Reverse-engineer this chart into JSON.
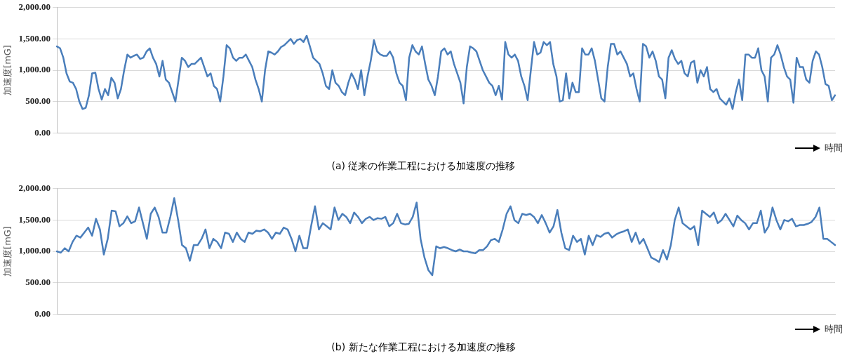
{
  "chart_data": [
    {
      "type": "line",
      "title": "(a)  従来の作業工程における加速度の推移",
      "xlabel": "時間",
      "ylabel": "加速度[mG]",
      "ylim": [
        0,
        2000
      ],
      "yticks": [
        {
          "value": 0,
          "label": "0.00"
        },
        {
          "value": 500,
          "label": "500.00"
        },
        {
          "value": 1000,
          "label": "1,000.00"
        },
        {
          "value": 1500,
          "label": "1,500.00"
        },
        {
          "value": 2000,
          "label": "2,000.00"
        }
      ],
      "grid": "y",
      "marker": "none",
      "line_style": "solid",
      "categories": [
        null,
        null,
        null,
        null,
        null,
        null,
        null,
        null,
        null,
        null,
        null,
        null,
        null,
        null,
        null,
        null,
        null,
        null,
        null,
        null,
        null,
        null,
        null,
        null,
        null,
        null,
        null,
        null,
        null,
        null,
        null,
        null,
        null,
        null,
        null,
        null,
        null,
        null,
        null,
        null,
        null,
        null,
        null,
        null,
        null,
        null,
        null,
        null,
        null,
        null,
        null,
        null,
        null,
        null,
        null,
        null,
        null,
        null,
        null,
        null,
        null,
        null,
        null,
        null,
        null,
        null,
        null,
        null,
        null,
        null,
        null,
        null,
        null,
        null,
        null,
        null,
        null,
        null,
        null,
        null,
        null,
        null,
        null,
        null,
        null,
        null,
        null,
        null,
        null,
        null,
        null,
        null,
        null,
        null,
        null,
        null,
        null,
        null,
        null,
        null,
        null,
        null,
        null,
        null,
        null,
        null,
        null,
        null,
        null,
        null,
        null,
        null,
        null,
        null,
        null,
        null,
        null,
        null,
        null,
        null,
        null,
        null,
        null,
        null,
        null,
        null,
        null,
        null,
        null,
        null,
        null,
        null,
        null,
        null,
        null,
        null,
        null,
        null,
        null,
        null,
        null,
        null,
        null,
        null,
        null,
        null,
        null,
        null,
        null,
        null,
        null,
        null,
        null,
        null,
        null,
        null,
        null,
        null,
        null,
        null,
        null,
        null,
        null,
        null,
        null,
        null,
        null,
        null,
        null,
        null,
        null,
        null,
        null,
        null,
        null,
        null,
        null,
        null,
        null,
        null,
        null,
        null,
        null,
        null,
        null,
        null,
        null,
        null,
        null,
        null,
        null,
        null,
        null,
        null,
        null,
        null,
        null,
        null,
        null,
        null,
        null,
        null,
        null,
        null,
        null,
        null,
        null,
        null,
        null,
        null,
        null,
        null,
        null,
        null,
        null,
        null,
        null,
        null,
        null,
        null,
        null,
        null,
        null,
        null,
        null,
        null,
        null,
        null,
        null,
        null,
        null,
        null,
        null,
        null,
        null,
        null,
        null,
        null,
        null,
        null,
        null,
        null,
        null,
        null
      ],
      "series": [
        {
          "color": "#4a7ebb",
          "values": [
            1380,
            1350,
            1200,
            950,
            820,
            800,
            700,
            500,
            380,
            400,
            600,
            950,
            960,
            700,
            530,
            700,
            600,
            880,
            800,
            550,
            700,
            1000,
            1250,
            1200,
            1230,
            1250,
            1180,
            1200,
            1300,
            1350,
            1200,
            1100,
            900,
            1150,
            850,
            800,
            650,
            500,
            850,
            1200,
            1150,
            1050,
            1100,
            1100,
            1150,
            1200,
            1050,
            900,
            950,
            750,
            700,
            500,
            900,
            1400,
            1350,
            1200,
            1150,
            1200,
            1200,
            1250,
            1150,
            1050,
            850,
            700,
            500,
            1000,
            1300,
            1280,
            1250,
            1300,
            1370,
            1400,
            1450,
            1500,
            1420,
            1480,
            1500,
            1450,
            1550,
            1380,
            1200,
            1150,
            1100,
            950,
            750,
            700,
            1000,
            800,
            750,
            650,
            600,
            800,
            950,
            850,
            700,
            1000,
            600,
            900,
            1150,
            1480,
            1300,
            1250,
            1230,
            1230,
            1300,
            1200,
            950,
            800,
            750,
            520,
            1200,
            1400,
            1300,
            1250,
            1380,
            1100,
            850,
            750,
            600,
            900,
            1300,
            1350,
            1250,
            1300,
            1100,
            950,
            800,
            470,
            1050,
            1380,
            1350,
            1300,
            1150,
            1000,
            900,
            800,
            750,
            600,
            750,
            530,
            1450,
            1250,
            1200,
            1250,
            1150,
            900,
            750,
            520,
            1000,
            1450,
            1250,
            1280,
            1450,
            1400,
            1450,
            1100,
            900,
            500,
            520,
            950,
            550,
            800,
            650,
            650,
            1350,
            1250,
            1250,
            1350,
            1150,
            850,
            550,
            500,
            1050,
            1420,
            1420,
            1250,
            1300,
            1200,
            1100,
            900,
            950,
            700,
            500,
            1420,
            1380,
            1200,
            1300,
            1150,
            900,
            850,
            550,
            1200,
            1320,
            1180,
            1100,
            1150,
            950,
            900,
            1120,
            1150,
            800,
            1000,
            900,
            1050,
            700,
            650,
            700,
            550,
            500,
            450,
            550,
            380,
            650,
            850,
            520,
            1250,
            1250,
            1200,
            1200,
            1350,
            1000,
            900,
            500,
            1200,
            1250,
            1400,
            1250,
            1050,
            900,
            850,
            480,
            1200,
            1050,
            1050,
            850,
            800,
            1150,
            1300,
            1250,
            1050,
            780,
            750,
            520,
            600
          ]
        }
      ]
    },
    {
      "type": "line",
      "title": "(b)  新たな作業工程における加速度の推移",
      "xlabel": "時間",
      "ylabel": "加速度[mG]",
      "ylim": [
        0,
        2000
      ],
      "yticks": [
        {
          "value": 0,
          "label": "0.00"
        },
        {
          "value": 500,
          "label": "500.00"
        },
        {
          "value": 1000,
          "label": "1,000.00"
        },
        {
          "value": 1500,
          "label": "1,500.00"
        },
        {
          "value": 2000,
          "label": "2,000.00"
        }
      ],
      "grid": "y",
      "marker": "none",
      "line_style": "solid",
      "categories": [
        null,
        null,
        null,
        null,
        null,
        null,
        null,
        null,
        null,
        null,
        null,
        null,
        null,
        null,
        null,
        null,
        null,
        null,
        null,
        null,
        null,
        null,
        null,
        null,
        null,
        null,
        null,
        null,
        null,
        null,
        null,
        null,
        null,
        null,
        null,
        null,
        null,
        null,
        null,
        null,
        null,
        null,
        null,
        null,
        null,
        null,
        null,
        null,
        null,
        null,
        null,
        null,
        null,
        null,
        null,
        null,
        null,
        null,
        null,
        null,
        null,
        null,
        null,
        null,
        null,
        null,
        null,
        null,
        null,
        null,
        null,
        null,
        null,
        null,
        null,
        null,
        null,
        null,
        null,
        null,
        null,
        null,
        null,
        null,
        null,
        null,
        null,
        null,
        null,
        null,
        null,
        null,
        null,
        null,
        null,
        null,
        null,
        null,
        null,
        null,
        null,
        null,
        null,
        null,
        null,
        null,
        null,
        null,
        null,
        null,
        null,
        null,
        null,
        null,
        null,
        null,
        null,
        null,
        null,
        null,
        null,
        null,
        null,
        null,
        null,
        null,
        null,
        null,
        null,
        null,
        null,
        null,
        null,
        null,
        null,
        null,
        null,
        null,
        null,
        null,
        null,
        null,
        null,
        null,
        null,
        null,
        null,
        null,
        null,
        null,
        null,
        null,
        null,
        null,
        null,
        null,
        null,
        null,
        null,
        null,
        null,
        null,
        null,
        null,
        null,
        null,
        null,
        null,
        null,
        null,
        null,
        null,
        null,
        null,
        null,
        null,
        null,
        null,
        null,
        null,
        null,
        null,
        null,
        null,
        null,
        null,
        null,
        null,
        null,
        null,
        null,
        null,
        null,
        null,
        null,
        null,
        null,
        null,
        null,
        null
      ],
      "series": [
        {
          "color": "#4a7ebb",
          "values": [
            1000,
            980,
            1050,
            1000,
            1150,
            1250,
            1220,
            1300,
            1380,
            1250,
            1520,
            1350,
            950,
            1200,
            1650,
            1640,
            1400,
            1450,
            1560,
            1450,
            1480,
            1700,
            1450,
            1200,
            1600,
            1700,
            1550,
            1300,
            1300,
            1550,
            1850,
            1500,
            1100,
            1050,
            850,
            1100,
            1100,
            1200,
            1350,
            1050,
            1200,
            1150,
            1050,
            1300,
            1280,
            1150,
            1300,
            1200,
            1150,
            1300,
            1280,
            1330,
            1320,
            1350,
            1300,
            1200,
            1300,
            1280,
            1380,
            1350,
            1200,
            1000,
            1250,
            1050,
            1050,
            1400,
            1720,
            1350,
            1450,
            1400,
            1350,
            1700,
            1500,
            1600,
            1550,
            1450,
            1620,
            1550,
            1450,
            1520,
            1550,
            1500,
            1530,
            1520,
            1550,
            1400,
            1450,
            1600,
            1450,
            1430,
            1440,
            1550,
            1780,
            1200,
            900,
            700,
            620,
            1080,
            1050,
            1070,
            1050,
            1020,
            1000,
            1030,
            1000,
            1000,
            980,
            970,
            1020,
            1020,
            1080,
            1180,
            1200,
            1150,
            1350,
            1600,
            1720,
            1500,
            1450,
            1600,
            1580,
            1600,
            1550,
            1450,
            1580,
            1450,
            1300,
            1400,
            1660,
            1300,
            1050,
            1020,
            1250,
            1150,
            1200,
            950,
            1250,
            1100,
            1260,
            1230,
            1280,
            1300,
            1220,
            1270,
            1300,
            1320,
            1350,
            1150,
            1300,
            1120,
            1200,
            1050,
            900,
            870,
            830,
            1020,
            870,
            1100,
            1500,
            1700,
            1450,
            1400,
            1350,
            1400,
            1100,
            1650,
            1600,
            1550,
            1620,
            1450,
            1500,
            1600,
            1500,
            1400,
            1570,
            1500,
            1450,
            1350,
            1450,
            1450,
            1650,
            1300,
            1400,
            1700,
            1500,
            1350,
            1500,
            1480,
            1520,
            1400,
            1420,
            1420,
            1440,
            1470,
            1550,
            1700,
            1200,
            1200,
            1150,
            1100
          ]
        }
      ]
    }
  ]
}
